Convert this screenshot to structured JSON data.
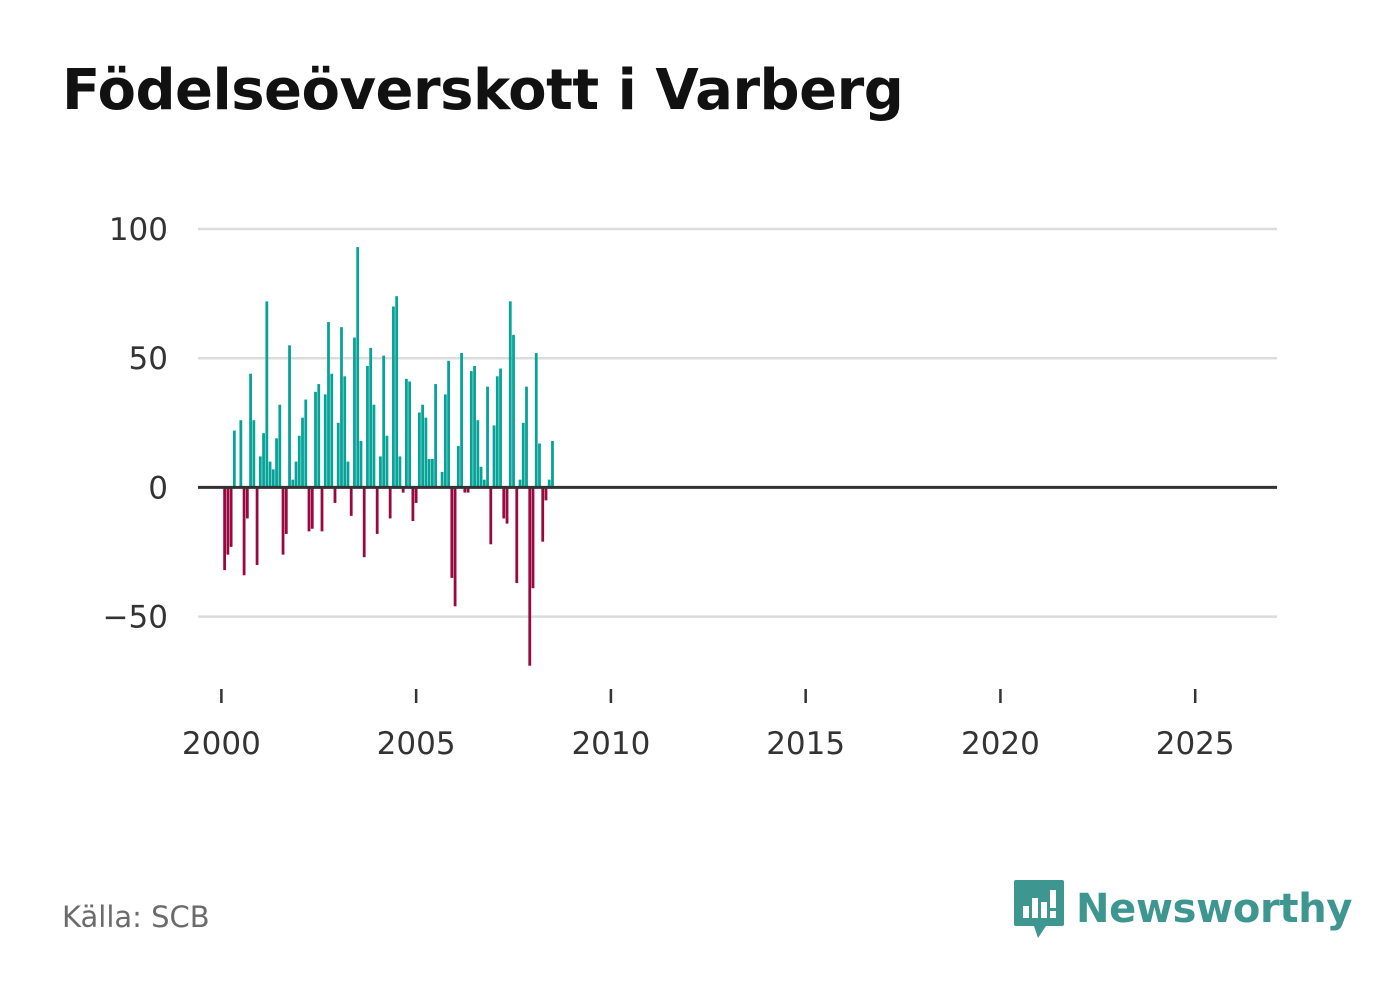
{
  "colors": {
    "positive": "#06a398",
    "negative": "#9a0840",
    "grid": "#dcdcdc",
    "zero_line": "#333333",
    "tick_text": "#333333",
    "title_text": "#111111",
    "source_text": "#6b6b6b",
    "brand": "#3d9690"
  },
  "footer": {
    "source": "Källa: SCB",
    "brand": "Newsworthy",
    "brand_icon": "chart-bubble-icon"
  },
  "chart_data": {
    "type": "bar",
    "title": "Födelseöverskott i Varberg",
    "xlabel": "",
    "ylabel": "",
    "unit": "monthly",
    "start": [
      2000,
      1
    ],
    "ylim": [
      -78,
      100
    ],
    "yticks": [
      100,
      50,
      0,
      -50
    ],
    "ytick_labels": [
      "100",
      "50",
      "0",
      "−50"
    ],
    "xlim": [
      1999.4,
      2027.1
    ],
    "xticks": [
      2000,
      2005,
      2010,
      2015,
      2020,
      2025
    ],
    "xtick_labels": [
      "2000",
      "2005",
      "2010",
      "2015",
      "2020",
      "2025"
    ],
    "grid": true,
    "legend": "none",
    "values": [
      0,
      -32,
      -26,
      -23,
      22,
      0,
      26,
      -34,
      -12,
      44,
      26,
      -30,
      12,
      21,
      72,
      10,
      7,
      19,
      32,
      -26,
      -18,
      55,
      3,
      10,
      20,
      27,
      34,
      -17,
      -16,
      37,
      40,
      -17,
      36,
      64,
      44,
      -6,
      25,
      62,
      43,
      10,
      -11,
      58,
      93,
      18,
      -27,
      47,
      54,
      32,
      -18,
      12,
      51,
      20,
      -12,
      70,
      74,
      12,
      -2,
      42,
      41,
      -13,
      -6,
      29,
      32,
      27,
      11,
      11,
      40,
      0,
      6,
      36,
      49,
      -35,
      -46,
      16,
      52,
      -2,
      -2,
      45,
      47,
      26,
      8,
      3,
      39,
      -22,
      24,
      43,
      46,
      -12,
      -14,
      72,
      59,
      -37,
      3,
      25,
      39,
      -69,
      -39,
      52,
      17,
      -21,
      -5,
      3,
      18
    ]
  }
}
